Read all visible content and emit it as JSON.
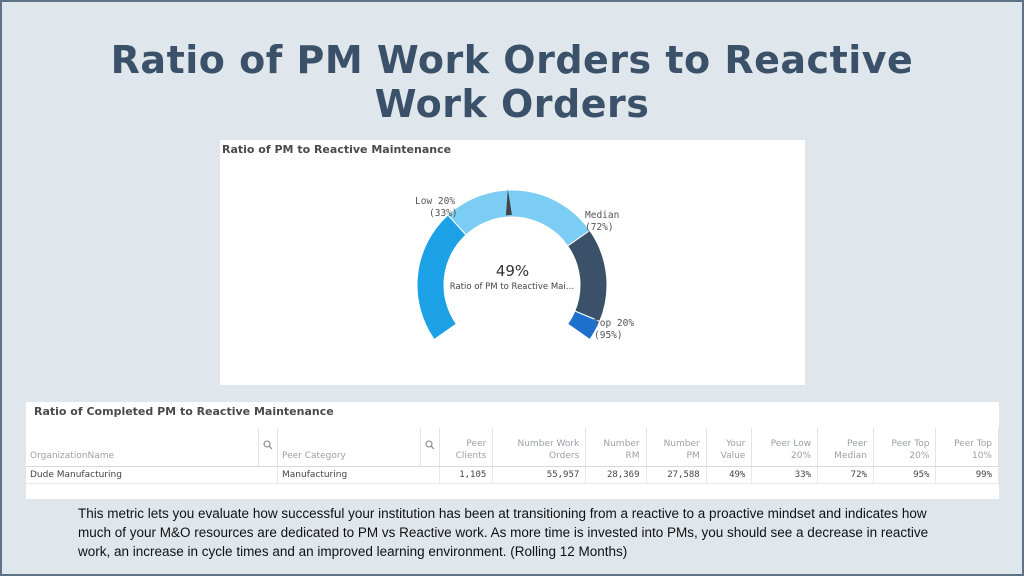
{
  "slide": {
    "title_line1": "Ratio of PM Work Orders to Reactive",
    "title_line2": "Work Orders",
    "description": "This metric lets you evaluate how successful your institution has been at transitioning from a reactive to a proactive mindset and indicates how much of your M&O resources are dedicated to PM vs Reactive work.  As more time is invested into PMs, you should see a decrease in reactive work, an increase in cycle times and an improved learning environment. (Rolling 12 Months)"
  },
  "gauge": {
    "panel_title": "Ratio of PM to Reactive Maintenance",
    "value": 49,
    "value_label": "49%",
    "measure_label": "Ratio of PM to Reactive Mai…",
    "min": 0,
    "max": 100,
    "bands": [
      {
        "from": 0,
        "to": 33,
        "color": "#1da1e6"
      },
      {
        "from": 33,
        "to": 72,
        "color": "#7ccdf4"
      },
      {
        "from": 72,
        "to": 95,
        "color": "#3a5169"
      },
      {
        "from": 95,
        "to": 100,
        "color": "#1f6fcc"
      }
    ],
    "markers": {
      "low": {
        "name": "Low 20%",
        "value_label": "(33%)"
      },
      "median": {
        "name": "Median",
        "value_label": "(72%)"
      },
      "top": {
        "name": "Top 20%",
        "value_label": "(95%)"
      }
    },
    "needle_color": "#444444"
  },
  "table": {
    "panel_title": "Ratio of Completed PM to Reactive Maintenance",
    "search_icon": "search-icon",
    "headers": {
      "org": "OrganizationName",
      "category": "Peer Category",
      "peer_clients": [
        "Peer",
        "Clients"
      ],
      "work_orders": [
        "Number Work",
        "Orders"
      ],
      "rm": [
        "Number",
        "RM"
      ],
      "pm": [
        "Number",
        "PM"
      ],
      "your_value": [
        "Your",
        "Value"
      ],
      "peer_low": [
        "Peer Low",
        "20%"
      ],
      "peer_median": [
        "Peer",
        "Median"
      ],
      "peer_top20": [
        "Peer Top",
        "20%"
      ],
      "peer_top10": [
        "Peer Top",
        "10%"
      ]
    },
    "rows": [
      {
        "org": "Dude Manufacturing",
        "category": "Manufacturing",
        "peer_clients": "1,105",
        "work_orders": "55,957",
        "rm": "28,369",
        "pm": "27,588",
        "your_value": "49%",
        "peer_low": "33%",
        "peer_median": "72%",
        "peer_top20": "95%",
        "peer_top10": "99%"
      }
    ]
  }
}
